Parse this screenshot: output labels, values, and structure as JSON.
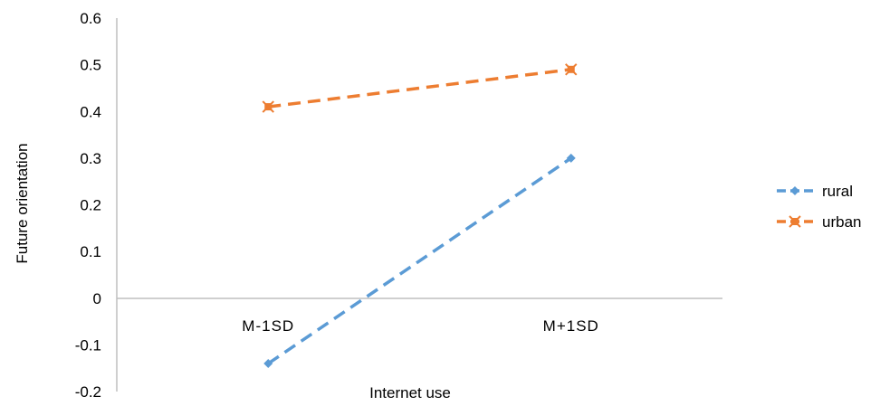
{
  "chart_data": {
    "type": "line",
    "categories": [
      "M-1SD",
      "M+1SD"
    ],
    "series": [
      {
        "name": "rural",
        "values": [
          -0.14,
          0.3
        ],
        "color": "#5b9bd5",
        "marker": "diamond"
      },
      {
        "name": "urban",
        "values": [
          0.41,
          0.49
        ],
        "color": "#ed7d31",
        "marker": "x-square"
      }
    ],
    "xlabel": "Internet use",
    "ylabel": "Future orientation",
    "ylim": [
      -0.2,
      0.6
    ],
    "yticks": [
      "0.6",
      "0.5",
      "0.4",
      "0.3",
      "0.2",
      "0.1",
      "0",
      "-0.1",
      "-0.2"
    ],
    "ytick_values": [
      0.6,
      0.5,
      0.4,
      0.3,
      0.2,
      0.1,
      0,
      -0.1,
      -0.2
    ],
    "grid": false,
    "legend_position": "right",
    "line_style": "dashed",
    "axis_color": "#bfbfbf"
  }
}
